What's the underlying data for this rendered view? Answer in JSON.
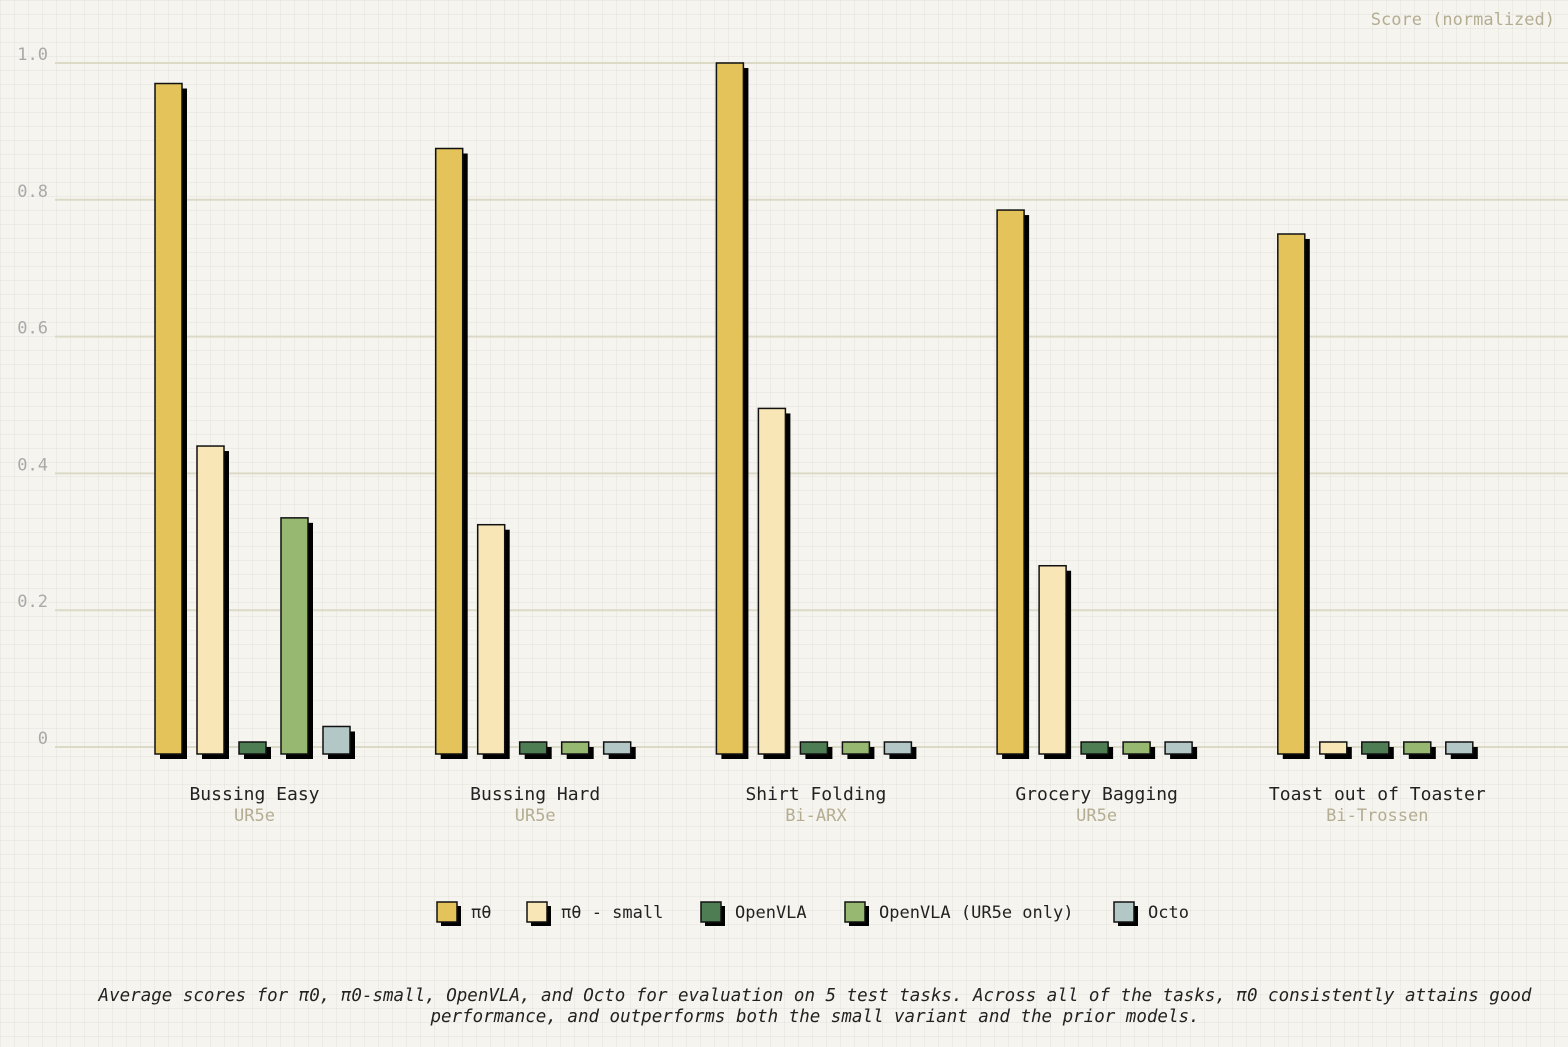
{
  "chart_data": {
    "type": "bar",
    "ylabel": "Score (normalized)",
    "ylim": [
      0,
      1.0
    ],
    "yticks": [
      0,
      0.2,
      0.4,
      0.6,
      0.8,
      1.0
    ],
    "ytick_labels": [
      "0",
      "0.2",
      "0.4",
      "0.6",
      "0.8",
      "1.0"
    ],
    "grid": true,
    "legend_position": "bottom",
    "categories": [
      {
        "name": "Bussing Easy",
        "robot": "UR5e"
      },
      {
        "name": "Bussing Hard",
        "robot": "UR5e"
      },
      {
        "name": "Shirt Folding",
        "robot": "Bi-ARX"
      },
      {
        "name": "Grocery Bagging",
        "robot": "UR5e"
      },
      {
        "name": "Toast out of Toaster",
        "robot": "Bi-Trossen"
      }
    ],
    "series": [
      {
        "name": "πθ",
        "color": "#e3c35a",
        "values": [
          0.97,
          0.875,
          1.0,
          0.785,
          0.75
        ]
      },
      {
        "name": "πθ - small",
        "color": "#f9e6b6",
        "values": [
          0.44,
          0.325,
          0.495,
          0.265,
          0.0
        ]
      },
      {
        "name": "OpenVLA",
        "color": "#4e7d53",
        "values": [
          0.0,
          0.0,
          0.0,
          0.0,
          0.0
        ]
      },
      {
        "name": "OpenVLA (UR5e only)",
        "color": "#97b871",
        "values": [
          0.335,
          0.0,
          0.0,
          0.0,
          0.0
        ]
      },
      {
        "name": "Octo",
        "color": "#b4c7c7",
        "values": [
          0.03,
          0.0,
          0.0,
          0.0,
          0.0
        ]
      }
    ]
  },
  "caption": "Average scores for π0, π0-small, OpenVLA, and Octo for evaluation on 5 test tasks. Across all of the tasks, π0 consistently attains good performance, and outperforms both the small variant and the prior models."
}
